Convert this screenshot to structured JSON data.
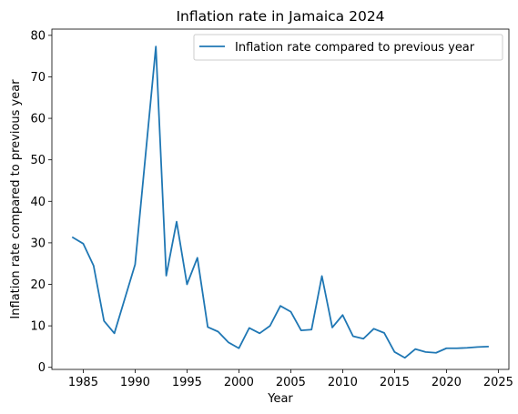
{
  "chart_data": {
    "type": "line",
    "title": "Inflation rate in Jamaica 2024",
    "xlabel": "Year",
    "ylabel": "Inflation rate compared to previous year",
    "xlim": [
      1981.98,
      2026.02
    ],
    "ylim": [
      -0.5,
      81.5
    ],
    "xticks": [
      1985,
      1990,
      1995,
      2000,
      2005,
      2010,
      2015,
      2020,
      2025
    ],
    "yticks": [
      0,
      10,
      20,
      30,
      40,
      50,
      60,
      70,
      80
    ],
    "grid": false,
    "legend_position": "top-right",
    "series": [
      {
        "name": "Inflation rate compared to previous year",
        "color": "#1f77b4",
        "x": [
          1984,
          1985,
          1986,
          1987,
          1988,
          1989,
          1990,
          1991,
          1992,
          1993,
          1994,
          1995,
          1996,
          1997,
          1998,
          1999,
          2000,
          2001,
          2002,
          2003,
          2004,
          2005,
          2006,
          2007,
          2008,
          2009,
          2010,
          2011,
          2012,
          2013,
          2014,
          2015,
          2016,
          2017,
          2018,
          2019,
          2020,
          2021,
          2022,
          2023,
          2024
        ],
        "y": [
          31.3,
          29.8,
          24.5,
          11.2,
          8.2,
          16.5,
          24.8,
          51.0,
          77.3,
          22.1,
          35.1,
          20.0,
          26.4,
          9.7,
          8.6,
          6.0,
          4.6,
          9.5,
          8.2,
          10.0,
          14.8,
          13.4,
          8.9,
          9.1,
          22.0,
          9.6,
          12.6,
          7.5,
          6.9,
          9.3,
          8.3,
          3.7,
          2.3,
          4.4,
          3.7,
          3.5,
          4.6,
          4.6,
          4.7,
          4.9,
          5.0
        ]
      }
    ]
  }
}
